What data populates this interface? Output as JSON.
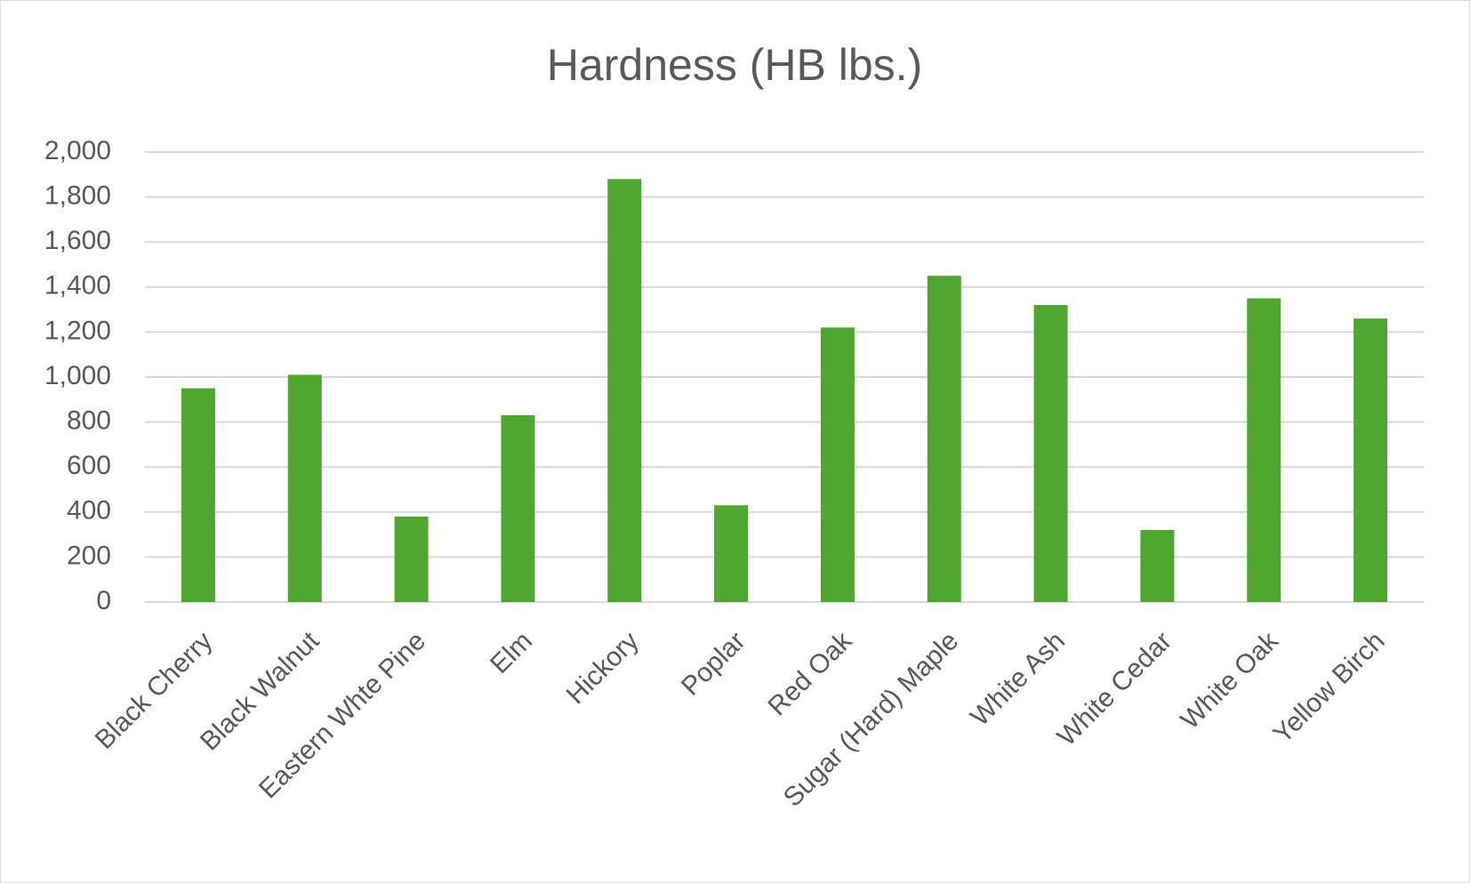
{
  "chart_data": {
    "type": "bar",
    "title": "Hardness (HB lbs.)",
    "categories": [
      "Black Cherry",
      "Black Walnut",
      "Eastern Whte Pine",
      "Elm",
      "Hickory",
      "Poplar",
      "Red Oak",
      "Sugar (Hard) Maple",
      "White Ash",
      "White Cedar",
      "White Oak",
      "Yellow Birch"
    ],
    "values": [
      950,
      1010,
      380,
      830,
      1880,
      430,
      1220,
      1450,
      1320,
      320,
      1350,
      1260
    ],
    "color": "#4ea72e",
    "ylim": [
      0,
      2000
    ],
    "yticks": [
      0,
      200,
      400,
      600,
      800,
      {
        "value": 1000,
        "label": "1,000"
      },
      {
        "value": 1200,
        "label": "1,200"
      },
      {
        "value": 1400,
        "label": "1,400"
      },
      {
        "value": 1600,
        "label": "1,600"
      },
      {
        "value": 1800,
        "label": "1,800"
      },
      {
        "value": 2000,
        "label": "2,000"
      }
    ],
    "grid": true
  }
}
